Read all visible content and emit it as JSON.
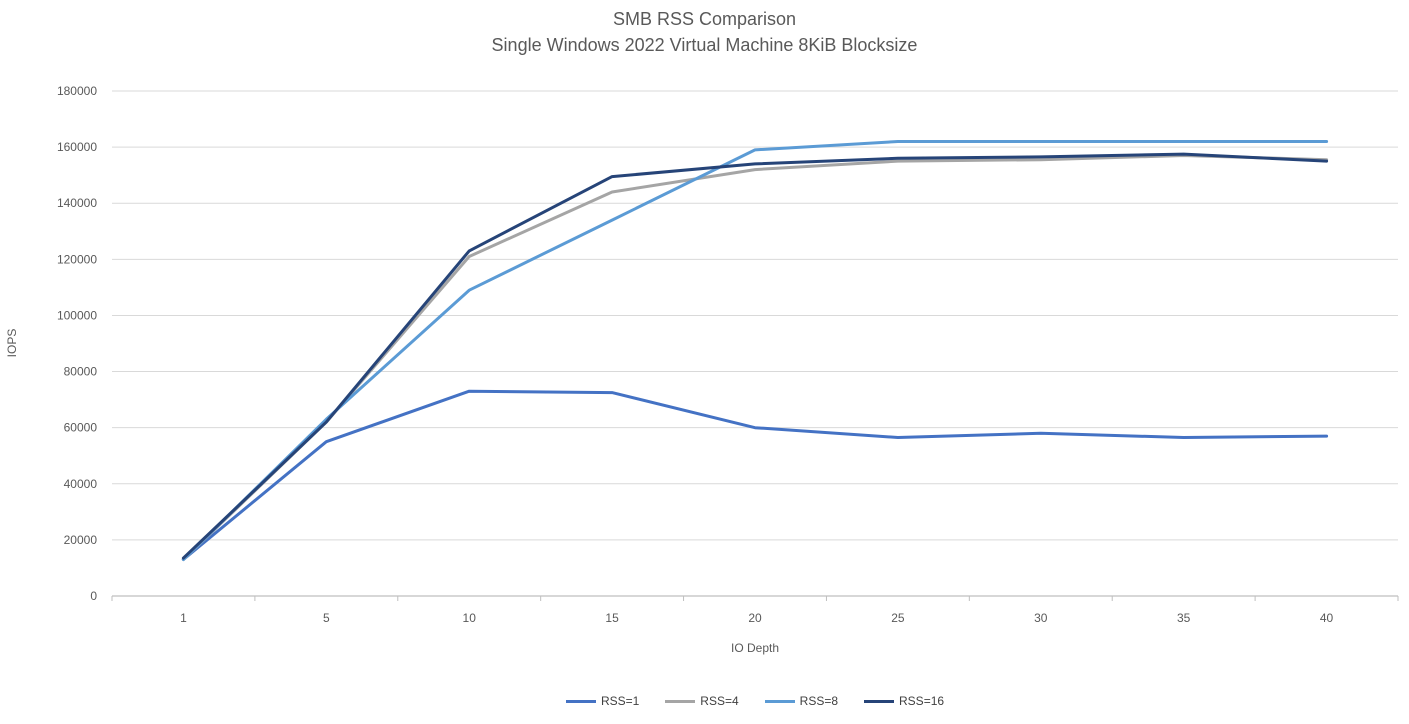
{
  "chart_data": {
    "type": "line",
    "title": "SMB RSS Comparison",
    "subtitle": "Single Windows 2022 Virtual Machine 8KiB Blocksize",
    "xlabel": "IO Depth",
    "ylabel": "IOPS",
    "categories": [
      1,
      5,
      10,
      15,
      20,
      25,
      30,
      35,
      40
    ],
    "ylim": [
      0,
      180000
    ],
    "ytick_interval": 20000,
    "ytick_labels": [
      "0",
      "20000",
      "40000",
      "60000",
      "80000",
      "100000",
      "120000",
      "140000",
      "160000",
      "180000"
    ],
    "grid": true,
    "legend_position": "bottom",
    "series": [
      {
        "name": "RSS=1",
        "color": "#4472C4",
        "values": [
          13000,
          55000,
          73000,
          72500,
          60000,
          56500,
          58000,
          56500,
          57000
        ]
      },
      {
        "name": "RSS=4",
        "color": "#A5A5A5",
        "values": [
          13000,
          62000,
          121000,
          144000,
          152000,
          155000,
          155500,
          157000,
          155500
        ]
      },
      {
        "name": "RSS=8",
        "color": "#5B9BD5",
        "values": [
          13000,
          63000,
          109000,
          134000,
          159000,
          162000,
          162000,
          162000,
          162000
        ]
      },
      {
        "name": "RSS=16",
        "color": "#264478",
        "values": [
          13500,
          62000,
          123000,
          149500,
          154000,
          156000,
          156500,
          157500,
          155000
        ]
      }
    ],
    "gridline_color": "#D9D9D9",
    "axis_line_color": "#BFBFBF",
    "title_color": "#595959"
  }
}
